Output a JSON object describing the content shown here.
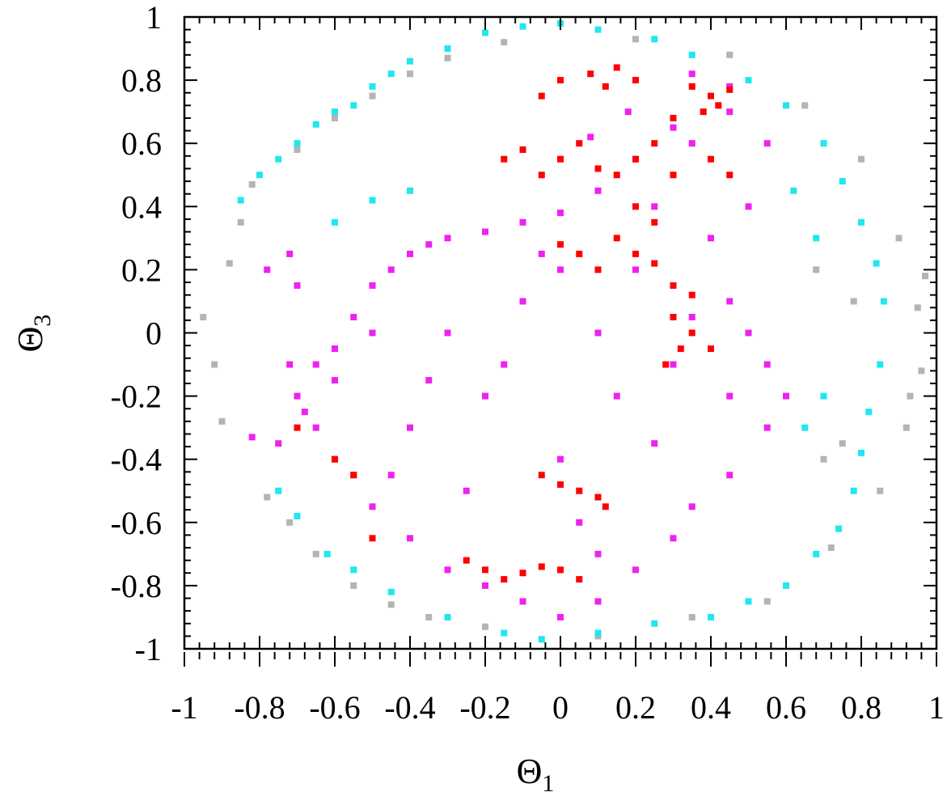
{
  "chart_data": {
    "type": "scatter",
    "title": "",
    "xlabel": "Θ",
    "xlabel_subscript": "1",
    "ylabel": "Θ",
    "ylabel_subscript": "3",
    "xlim": [
      -1,
      1
    ],
    "ylim": [
      -1,
      1
    ],
    "x_ticks": [
      -1,
      -0.8,
      -0.6,
      -0.4,
      -0.2,
      0,
      0.2,
      0.4,
      0.6,
      0.8,
      1
    ],
    "x_tick_labels": [
      "-1",
      "-0.8",
      "-0.6",
      "-0.4",
      "-0.2",
      "0",
      "0.2",
      "0.4",
      "0.6",
      "0.8",
      "1"
    ],
    "y_ticks": [
      -1,
      -0.8,
      -0.6,
      -0.4,
      -0.2,
      0,
      0.2,
      0.4,
      0.6,
      0.8,
      1
    ],
    "y_tick_labels": [
      "-1",
      "-0.8",
      "-0.6",
      "-0.4",
      "-0.2",
      "0",
      "0.2",
      "0.4",
      "0.6",
      "0.8",
      "1"
    ],
    "grid": false,
    "legend": "none",
    "series": [
      {
        "color": "#b4b4b4",
        "description_points": [
          [
            -0.95,
            0.05
          ],
          [
            -0.92,
            -0.1
          ],
          [
            -0.9,
            -0.28
          ],
          [
            -0.88,
            0.22
          ],
          [
            -0.85,
            0.35
          ],
          [
            -0.82,
            0.47
          ],
          [
            -0.78,
            -0.52
          ],
          [
            -0.72,
            -0.6
          ],
          [
            -0.7,
            0.58
          ],
          [
            -0.65,
            -0.7
          ],
          [
            -0.6,
            0.68
          ],
          [
            -0.55,
            -0.8
          ],
          [
            -0.5,
            0.75
          ],
          [
            -0.45,
            -0.86
          ],
          [
            -0.4,
            0.82
          ],
          [
            -0.35,
            -0.9
          ],
          [
            -0.3,
            0.87
          ],
          [
            -0.2,
            -0.93
          ],
          [
            -0.15,
            0.92
          ],
          [
            0.1,
            -0.96
          ],
          [
            0.2,
            0.93
          ],
          [
            0.35,
            -0.9
          ],
          [
            0.45,
            0.88
          ],
          [
            0.55,
            -0.85
          ],
          [
            0.65,
            0.72
          ],
          [
            0.72,
            -0.68
          ],
          [
            0.8,
            0.55
          ],
          [
            0.85,
            -0.5
          ],
          [
            0.9,
            0.3
          ],
          [
            0.92,
            -0.3
          ],
          [
            0.95,
            0.08
          ],
          [
            0.96,
            -0.12
          ],
          [
            0.97,
            0.18
          ],
          [
            0.93,
            -0.2
          ],
          [
            0.7,
            -0.4
          ],
          [
            0.75,
            -0.35
          ],
          [
            0.68,
            0.2
          ],
          [
            0.78,
            0.1
          ]
        ]
      },
      {
        "color": "#22e6f0",
        "description_points": [
          [
            -0.85,
            0.42
          ],
          [
            -0.8,
            0.5
          ],
          [
            -0.75,
            0.55
          ],
          [
            -0.7,
            0.6
          ],
          [
            -0.65,
            0.66
          ],
          [
            -0.6,
            0.7
          ],
          [
            -0.55,
            0.72
          ],
          [
            -0.5,
            0.78
          ],
          [
            -0.45,
            0.82
          ],
          [
            -0.4,
            0.86
          ],
          [
            -0.3,
            0.9
          ],
          [
            -0.2,
            0.95
          ],
          [
            -0.1,
            0.97
          ],
          [
            0.0,
            0.98
          ],
          [
            0.1,
            0.96
          ],
          [
            0.25,
            0.93
          ],
          [
            0.35,
            0.88
          ],
          [
            0.5,
            0.8
          ],
          [
            0.6,
            0.72
          ],
          [
            0.7,
            0.6
          ],
          [
            0.75,
            0.48
          ],
          [
            0.8,
            0.35
          ],
          [
            0.84,
            0.22
          ],
          [
            0.86,
            0.1
          ],
          [
            0.85,
            -0.1
          ],
          [
            0.82,
            -0.25
          ],
          [
            0.8,
            -0.38
          ],
          [
            0.78,
            -0.5
          ],
          [
            0.74,
            -0.62
          ],
          [
            0.68,
            -0.7
          ],
          [
            0.6,
            -0.8
          ],
          [
            0.5,
            -0.85
          ],
          [
            0.4,
            -0.9
          ],
          [
            0.25,
            -0.92
          ],
          [
            0.1,
            -0.95
          ],
          [
            -0.05,
            -0.97
          ],
          [
            -0.15,
            -0.95
          ],
          [
            -0.3,
            -0.9
          ],
          [
            -0.45,
            -0.82
          ],
          [
            -0.55,
            -0.75
          ],
          [
            -0.62,
            -0.7
          ],
          [
            -0.7,
            -0.58
          ],
          [
            -0.75,
            -0.5
          ],
          [
            -0.5,
            0.42
          ],
          [
            -0.4,
            0.45
          ],
          [
            -0.6,
            0.35
          ],
          [
            0.65,
            -0.3
          ],
          [
            0.7,
            -0.2
          ],
          [
            0.62,
            0.45
          ],
          [
            0.68,
            0.3
          ]
        ]
      },
      {
        "color": "#ee22ee",
        "description_points": [
          [
            -0.82,
            -0.33
          ],
          [
            -0.75,
            -0.35
          ],
          [
            -0.7,
            0.15
          ],
          [
            -0.68,
            -0.25
          ],
          [
            -0.65,
            -0.1
          ],
          [
            -0.6,
            -0.05
          ],
          [
            -0.55,
            0.05
          ],
          [
            -0.5,
            0.15
          ],
          [
            -0.45,
            0.2
          ],
          [
            -0.4,
            0.25
          ],
          [
            -0.35,
            0.28
          ],
          [
            -0.3,
            0.3
          ],
          [
            -0.2,
            0.32
          ],
          [
            -0.1,
            0.35
          ],
          [
            0.0,
            0.38
          ],
          [
            0.1,
            0.45
          ],
          [
            0.2,
            0.55
          ],
          [
            0.3,
            0.65
          ],
          [
            0.35,
            0.6
          ],
          [
            0.45,
            0.7
          ],
          [
            0.55,
            0.6
          ],
          [
            0.5,
            0.4
          ],
          [
            0.45,
            0.1
          ],
          [
            0.5,
            0.0
          ],
          [
            0.55,
            -0.1
          ],
          [
            0.6,
            -0.2
          ],
          [
            0.55,
            -0.3
          ],
          [
            0.45,
            -0.45
          ],
          [
            0.35,
            -0.55
          ],
          [
            0.3,
            -0.65
          ],
          [
            0.2,
            -0.75
          ],
          [
            0.1,
            -0.85
          ],
          [
            0.0,
            -0.9
          ],
          [
            -0.1,
            -0.85
          ],
          [
            -0.2,
            -0.8
          ],
          [
            -0.3,
            -0.75
          ],
          [
            -0.4,
            -0.65
          ],
          [
            -0.5,
            -0.55
          ],
          [
            -0.55,
            -0.45
          ],
          [
            -0.6,
            -0.4
          ],
          [
            -0.65,
            -0.3
          ],
          [
            -0.7,
            -0.2
          ],
          [
            -0.72,
            -0.1
          ],
          [
            -0.3,
            0.0
          ],
          [
            -0.2,
            -0.2
          ],
          [
            0.0,
            -0.4
          ],
          [
            0.1,
            0.0
          ],
          [
            0.2,
            0.2
          ],
          [
            0.3,
            -0.1
          ],
          [
            -0.4,
            -0.3
          ],
          [
            -0.1,
            0.1
          ],
          [
            0.05,
            -0.6
          ],
          [
            -0.25,
            -0.5
          ],
          [
            0.25,
            -0.35
          ],
          [
            -0.5,
            0.0
          ],
          [
            0.4,
            0.3
          ],
          [
            -0.6,
            -0.15
          ],
          [
            0.0,
            0.2
          ],
          [
            0.15,
            -0.2
          ],
          [
            -0.15,
            -0.1
          ],
          [
            -0.35,
            -0.15
          ],
          [
            0.35,
            0.05
          ],
          [
            0.45,
            -0.2
          ],
          [
            -0.45,
            -0.45
          ],
          [
            0.1,
            -0.7
          ],
          [
            -0.05,
            0.25
          ],
          [
            0.25,
            0.4
          ],
          [
            0.08,
            0.62
          ],
          [
            0.18,
            0.7
          ],
          [
            0.35,
            0.82
          ],
          [
            0.45,
            0.78
          ],
          [
            -0.78,
            0.2
          ],
          [
            -0.72,
            0.25
          ]
        ]
      },
      {
        "color": "#ff0000",
        "description_points": [
          [
            -0.05,
            0.75
          ],
          [
            0.0,
            0.8
          ],
          [
            0.08,
            0.82
          ],
          [
            0.12,
            0.78
          ],
          [
            0.15,
            0.84
          ],
          [
            0.2,
            0.8
          ],
          [
            0.35,
            0.78
          ],
          [
            0.4,
            0.75
          ],
          [
            0.45,
            0.77
          ],
          [
            0.42,
            0.72
          ],
          [
            0.38,
            0.7
          ],
          [
            0.3,
            0.68
          ],
          [
            -0.15,
            0.55
          ],
          [
            -0.1,
            0.58
          ],
          [
            -0.05,
            0.5
          ],
          [
            0.0,
            0.55
          ],
          [
            0.05,
            0.6
          ],
          [
            0.1,
            0.52
          ],
          [
            0.15,
            0.5
          ],
          [
            0.2,
            0.55
          ],
          [
            0.25,
            0.6
          ],
          [
            0.3,
            0.5
          ],
          [
            0.0,
            0.28
          ],
          [
            0.05,
            0.25
          ],
          [
            0.1,
            0.2
          ],
          [
            0.15,
            0.3
          ],
          [
            0.2,
            0.25
          ],
          [
            0.25,
            0.22
          ],
          [
            0.3,
            0.15
          ],
          [
            0.35,
            0.12
          ],
          [
            0.3,
            0.05
          ],
          [
            0.32,
            -0.05
          ],
          [
            0.28,
            -0.1
          ],
          [
            0.35,
            0.0
          ],
          [
            0.4,
            -0.05
          ],
          [
            -0.05,
            -0.45
          ],
          [
            0.0,
            -0.48
          ],
          [
            0.05,
            -0.5
          ],
          [
            0.1,
            -0.52
          ],
          [
            0.12,
            -0.55
          ],
          [
            -0.25,
            -0.72
          ],
          [
            -0.2,
            -0.75
          ],
          [
            -0.15,
            -0.78
          ],
          [
            -0.1,
            -0.76
          ],
          [
            -0.05,
            -0.74
          ],
          [
            0.0,
            -0.75
          ],
          [
            0.05,
            -0.78
          ],
          [
            -0.6,
            -0.4
          ],
          [
            -0.55,
            -0.45
          ],
          [
            -0.5,
            -0.65
          ],
          [
            -0.7,
            -0.3
          ],
          [
            0.45,
            0.5
          ],
          [
            0.4,
            0.55
          ],
          [
            0.25,
            0.35
          ],
          [
            0.2,
            0.4
          ]
        ]
      }
    ]
  }
}
